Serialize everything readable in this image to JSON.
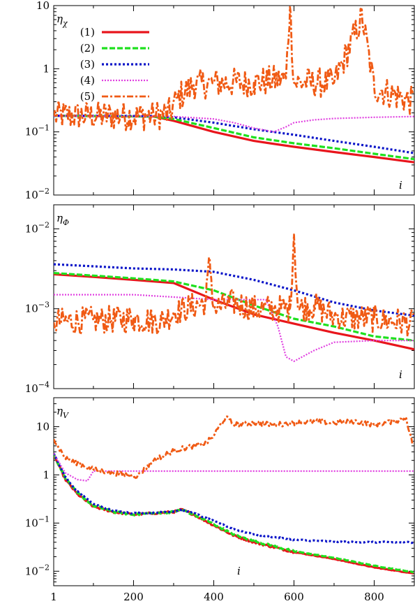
{
  "chart_data": [
    {
      "type": "line",
      "ylabel": "η_χ",
      "ylabel_main": "η",
      "ylabel_sub": "χ",
      "xlabel": "i",
      "xlim": [
        1,
        900
      ],
      "ylim": [
        0.01,
        10
      ],
      "yscale": "log",
      "y_ticks": [
        {
          "v": 0.01,
          "m": "10",
          "e": "−2"
        },
        {
          "v": 0.1,
          "m": "10",
          "e": "−1"
        },
        {
          "v": 1,
          "m": "1",
          "e": ""
        },
        {
          "v": 10,
          "m": "10",
          "e": ""
        }
      ],
      "legend": {
        "placement": "top-left"
      },
      "series": [
        {
          "name": "(1)",
          "color": "#e8151c",
          "dash": "",
          "width": 3.2,
          "noise": 0,
          "x": [
            1,
            250,
            300,
            400,
            500,
            600,
            700,
            800,
            900
          ],
          "y": [
            0.18,
            0.175,
            0.15,
            0.1,
            0.072,
            0.058,
            0.048,
            0.04,
            0.033
          ]
        },
        {
          "name": "(2)",
          "color": "#1ee01e",
          "dash": "8,3",
          "width": 3.2,
          "noise": 0,
          "x": [
            1,
            250,
            300,
            400,
            500,
            600,
            700,
            800,
            900
          ],
          "y": [
            0.18,
            0.175,
            0.16,
            0.115,
            0.082,
            0.066,
            0.055,
            0.045,
            0.037
          ]
        },
        {
          "name": "(3)",
          "color": "#0a14c8",
          "dash": "3,3",
          "width": 3.2,
          "noise": 0,
          "x": [
            1,
            250,
            300,
            400,
            500,
            600,
            700,
            800,
            900
          ],
          "y": [
            0.18,
            0.178,
            0.17,
            0.14,
            0.11,
            0.09,
            0.072,
            0.058,
            0.046
          ]
        },
        {
          "name": "(4)",
          "color": "#e040e0",
          "dash": "2,2",
          "width": 2.2,
          "noise": 0,
          "x": [
            1,
            300,
            400,
            450,
            500,
            550,
            580,
            600,
            650,
            700,
            800,
            900
          ],
          "y": [
            0.18,
            0.175,
            0.16,
            0.14,
            0.115,
            0.1,
            0.12,
            0.14,
            0.155,
            0.163,
            0.17,
            0.175
          ]
        },
        {
          "name": "(5)",
          "color": "#f05a14",
          "dash": "9,3,3,3",
          "width": 2.8,
          "noise": 0.55,
          "x": [
            1,
            250,
            290,
            310,
            350,
            400,
            500,
            580,
            590,
            600,
            700,
            770,
            800,
            900
          ],
          "y": [
            0.18,
            0.18,
            0.2,
            0.35,
            0.55,
            0.6,
            0.6,
            0.7,
            9.5,
            0.6,
            0.6,
            6.5,
            0.5,
            0.3
          ]
        }
      ]
    },
    {
      "type": "line",
      "ylabel": "η_Φ",
      "ylabel_main": "η",
      "ylabel_sub": "Φ",
      "xlabel": "i",
      "xlim": [
        1,
        900
      ],
      "ylim": [
        0.0001,
        0.02
      ],
      "yscale": "log",
      "y_ticks": [
        {
          "v": 0.0001,
          "m": "10",
          "e": "−4"
        },
        {
          "v": 0.001,
          "m": "10",
          "e": "−3"
        },
        {
          "v": 0.01,
          "m": "10",
          "e": "−2"
        }
      ],
      "series": [
        {
          "name": "(1)",
          "color": "#e8151c",
          "dash": "",
          "width": 3.2,
          "noise": 0,
          "x": [
            1,
            100,
            200,
            300,
            400,
            500,
            600,
            700,
            800,
            900
          ],
          "y": [
            0.0027,
            0.0025,
            0.0023,
            0.0021,
            0.0013,
            0.00085,
            0.00065,
            0.0005,
            0.0004,
            0.00031
          ]
        },
        {
          "name": "(2)",
          "color": "#1ee01e",
          "dash": "8,3",
          "width": 3.2,
          "noise": 0,
          "x": [
            1,
            100,
            200,
            300,
            400,
            500,
            600,
            700,
            800,
            900
          ],
          "y": [
            0.0028,
            0.0026,
            0.0024,
            0.0022,
            0.0017,
            0.0011,
            0.00075,
            0.0006,
            0.00045,
            0.0004
          ]
        },
        {
          "name": "(3)",
          "color": "#0a14c8",
          "dash": "3,3",
          "width": 3.2,
          "noise": 0,
          "x": [
            1,
            100,
            200,
            300,
            400,
            500,
            600,
            700,
            800,
            900
          ],
          "y": [
            0.0036,
            0.0034,
            0.0032,
            0.0031,
            0.0029,
            0.0023,
            0.0017,
            0.0012,
            0.00095,
            0.00082
          ]
        },
        {
          "name": "(4)",
          "color": "#e040e0",
          "dash": "2,2",
          "width": 2.2,
          "noise": 0,
          "x": [
            1,
            100,
            200,
            300,
            400,
            500,
            530,
            560,
            580,
            600,
            650,
            700,
            800,
            900
          ],
          "y": [
            0.0015,
            0.0015,
            0.0015,
            0.0014,
            0.0013,
            0.0013,
            0.0013,
            0.0006,
            0.00025,
            0.00022,
            0.0003,
            0.00038,
            0.0004,
            0.0004
          ]
        },
        {
          "name": "(5)",
          "color": "#f05a14",
          "dash": "9,3,3,3",
          "width": 2.8,
          "noise": 0.4,
          "x": [
            1,
            100,
            200,
            270,
            300,
            380,
            390,
            400,
            450,
            500,
            550,
            590,
            600,
            610,
            650,
            700,
            800,
            900
          ],
          "y": [
            0.00068,
            0.00072,
            0.00075,
            0.0007,
            0.0009,
            0.0012,
            0.0042,
            0.001,
            0.0012,
            0.001,
            0.001,
            0.001,
            0.0085,
            0.001,
            0.0011,
            0.0008,
            0.00075,
            0.00065
          ]
        }
      ]
    },
    {
      "type": "line",
      "ylabel": "η_V",
      "ylabel_main": "η",
      "ylabel_sub": "V",
      "xlabel": "i",
      "xlim": [
        1,
        900
      ],
      "ylim": [
        0.005,
        40
      ],
      "yscale": "log",
      "x_ticks": [
        1,
        200,
        400,
        600,
        800
      ],
      "y_ticks": [
        {
          "v": 0.01,
          "m": "10",
          "e": "−2"
        },
        {
          "v": 0.1,
          "m": "10",
          "e": "−1"
        },
        {
          "v": 1,
          "m": "1",
          "e": ""
        },
        {
          "v": 10,
          "m": "10",
          "e": ""
        }
      ],
      "series": [
        {
          "name": "(1)",
          "color": "#e8151c",
          "dash": "",
          "width": 3.2,
          "noise": 0.05,
          "x": [
            1,
            30,
            60,
            100,
            150,
            200,
            250,
            300,
            320,
            350,
            400,
            450,
            500,
            600,
            700,
            800,
            900
          ],
          "y": [
            2.6,
            0.8,
            0.4,
            0.22,
            0.17,
            0.15,
            0.16,
            0.17,
            0.19,
            0.15,
            0.09,
            0.055,
            0.04,
            0.025,
            0.018,
            0.012,
            0.009
          ]
        },
        {
          "name": "(2)",
          "color": "#1ee01e",
          "dash": "8,3",
          "width": 3.2,
          "noise": 0.05,
          "x": [
            1,
            30,
            60,
            100,
            150,
            200,
            250,
            300,
            320,
            350,
            400,
            450,
            500,
            600,
            700,
            800,
            900
          ],
          "y": [
            2.7,
            0.85,
            0.42,
            0.23,
            0.17,
            0.15,
            0.16,
            0.17,
            0.19,
            0.15,
            0.095,
            0.058,
            0.042,
            0.026,
            0.019,
            0.013,
            0.0095
          ]
        },
        {
          "name": "(3)",
          "color": "#0a14c8",
          "dash": "3,3",
          "width": 3.2,
          "noise": 0.03,
          "x": [
            1,
            30,
            60,
            100,
            150,
            200,
            250,
            300,
            320,
            350,
            400,
            450,
            500,
            600,
            700,
            800,
            900
          ],
          "y": [
            2.8,
            0.9,
            0.45,
            0.25,
            0.18,
            0.16,
            0.165,
            0.175,
            0.19,
            0.16,
            0.11,
            0.075,
            0.058,
            0.045,
            0.041,
            0.04,
            0.04
          ]
        },
        {
          "name": "(4)",
          "color": "#e040e0",
          "dash": "2,2",
          "width": 2.2,
          "noise": 0,
          "x": [
            1,
            30,
            60,
            85,
            100,
            130,
            200,
            300,
            400,
            500,
            600,
            700,
            800,
            900
          ],
          "y": [
            2.8,
            1.1,
            0.8,
            0.75,
            1.2,
            1.2,
            1.2,
            1.2,
            1.2,
            1.2,
            1.2,
            1.2,
            1.2,
            1.2
          ]
        },
        {
          "name": "(5)",
          "color": "#f05a14",
          "dash": "9,3,3,3",
          "width": 2.8,
          "noise": 0.12,
          "x": [
            1,
            30,
            100,
            150,
            210,
            250,
            300,
            350,
            380,
            400,
            410,
            430,
            450,
            500,
            550,
            600,
            650,
            700,
            750,
            800,
            850,
            880,
            895
          ],
          "y": [
            5.5,
            2.2,
            1.3,
            1.1,
            0.95,
            2.0,
            3.2,
            4.0,
            4.5,
            6.5,
            9,
            16,
            11,
            12,
            11,
            12,
            13,
            12,
            13,
            11,
            13,
            15,
            4.5
          ]
        }
      ]
    }
  ]
}
